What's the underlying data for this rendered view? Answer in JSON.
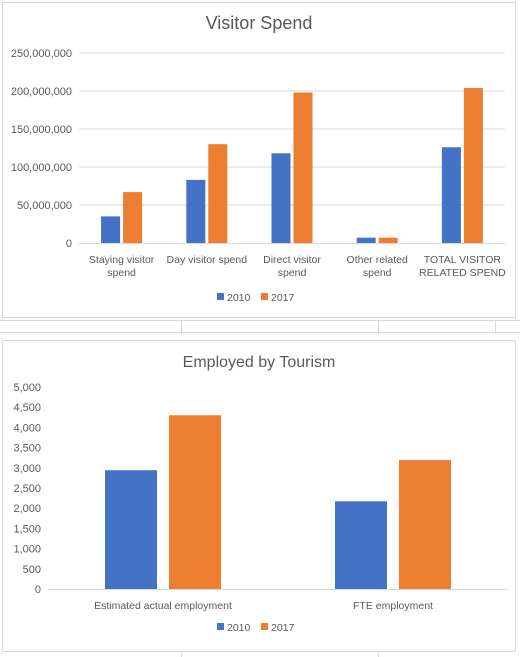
{
  "colors": {
    "series_2010": "#4472C4",
    "series_2017": "#ED7D31",
    "grid": "#D9D9D9",
    "text": "#595959"
  },
  "chart_data": [
    {
      "type": "bar",
      "title": "Visitor Spend",
      "categories": [
        [
          "Staying  visitor",
          "spend"
        ],
        [
          "Day visitor spend"
        ],
        [
          "Direct visitor",
          "spend"
        ],
        [
          "Other related",
          "spend"
        ],
        [
          "TOTAL VISITOR",
          "RELATED SPEND"
        ]
      ],
      "series": [
        {
          "name": "2010",
          "values": [
            35000000,
            83000000,
            118000000,
            7000000,
            126000000
          ]
        },
        {
          "name": "2017",
          "values": [
            67000000,
            130000000,
            198000000,
            7000000,
            204000000
          ]
        }
      ],
      "yticks": [
        "0",
        "50,000,000",
        "100,000,000",
        "150,000,000",
        "200,000,000",
        "250,000,000"
      ],
      "ylim": [
        0,
        250000000
      ],
      "grid": true,
      "legend": "bottom"
    },
    {
      "type": "bar",
      "title": "Employed by Tourism",
      "categories": [
        [
          "Estimated actual employment"
        ],
        [
          "FTE employment"
        ]
      ],
      "series": [
        {
          "name": "2010",
          "values": [
            2940,
            2170
          ]
        },
        {
          "name": "2017",
          "values": [
            4300,
            3190
          ]
        }
      ],
      "yticks": [
        "0",
        "500",
        "1,000",
        "1,500",
        "2,000",
        "2,500",
        "3,000",
        "3,500",
        "4,000",
        "4,500",
        "5,000"
      ],
      "ylim": [
        0,
        5000
      ],
      "grid": false,
      "legend": "bottom"
    }
  ]
}
